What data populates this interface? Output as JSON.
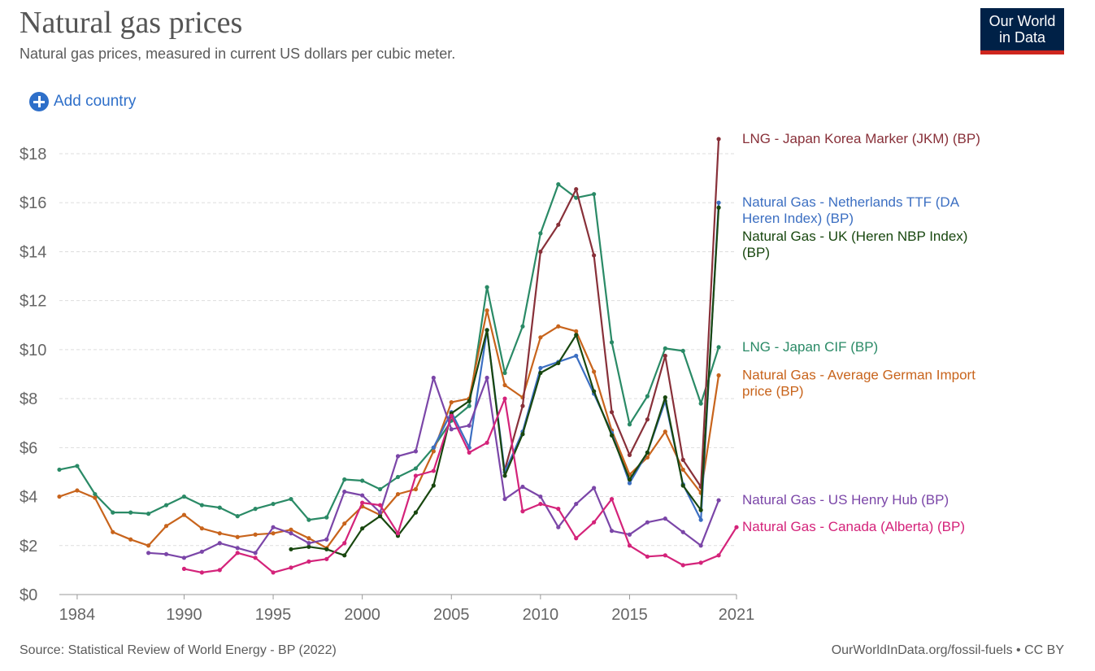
{
  "header": {
    "title": "Natural gas prices",
    "subtitle": "Natural gas prices, measured in current US dollars per cubic meter.",
    "logo_line1": "Our World",
    "logo_line2": "in Data"
  },
  "controls": {
    "add_country_label": "Add country"
  },
  "footer": {
    "source": "Source: Statistical Review of World Energy - BP (2022)",
    "credit": "OurWorldInData.org/fossil-fuels • CC BY"
  },
  "colors": {
    "brand_bg": "#002147",
    "brand_accent": "#ce261e",
    "link": "#2e6fc9"
  },
  "chart_data": {
    "type": "line",
    "title": "Natural gas prices",
    "subtitle": "Natural gas prices, measured in current US dollars per cubic meter.",
    "xlabel": "",
    "ylabel": "",
    "xlim": [
      1983,
      2021
    ],
    "ylim": [
      0,
      18
    ],
    "x_ticks": [
      "1984",
      "1990",
      "1995",
      "2000",
      "2005",
      "2010",
      "2015",
      "2021"
    ],
    "y_ticks": [
      "$0",
      "$2",
      "$4",
      "$6",
      "$8",
      "$10",
      "$12",
      "$14",
      "$16",
      "$18"
    ],
    "grid": true,
    "legend": "line-end labels",
    "series": [
      {
        "name": "LNG - Japan CIF (BP)",
        "color": "#2a8a66",
        "label_lines": [
          "LNG - Japan CIF (BP)"
        ],
        "points": [
          [
            1983,
            5.1
          ],
          [
            1984,
            5.25
          ],
          [
            1985,
            4.1
          ],
          [
            1986,
            3.35
          ],
          [
            1987,
            3.35
          ],
          [
            1988,
            3.3
          ],
          [
            1989,
            3.65
          ],
          [
            1990,
            4.0
          ],
          [
            1991,
            3.65
          ],
          [
            1992,
            3.55
          ],
          [
            1993,
            3.2
          ],
          [
            1994,
            3.5
          ],
          [
            1995,
            3.7
          ],
          [
            1996,
            3.9
          ],
          [
            1997,
            3.05
          ],
          [
            1998,
            3.15
          ],
          [
            1999,
            4.7
          ],
          [
            2000,
            4.65
          ],
          [
            2001,
            4.3
          ],
          [
            2002,
            4.8
          ],
          [
            2003,
            5.15
          ],
          [
            2004,
            6.0
          ],
          [
            2005,
            7.1
          ],
          [
            2006,
            7.7
          ],
          [
            2007,
            12.55
          ],
          [
            2008,
            9.05
          ],
          [
            2009,
            10.95
          ],
          [
            2010,
            14.75
          ],
          [
            2011,
            16.75
          ],
          [
            2012,
            16.2
          ],
          [
            2013,
            16.35
          ],
          [
            2014,
            10.3
          ],
          [
            2015,
            6.95
          ],
          [
            2016,
            8.1
          ],
          [
            2017,
            10.05
          ],
          [
            2018,
            9.95
          ],
          [
            2019,
            7.8
          ],
          [
            2020,
            10.1
          ]
        ]
      },
      {
        "name": "Natural Gas - Average German Import price (BP)",
        "color": "#c8641c",
        "label_lines": [
          "Natural Gas - Average German Import",
          "price (BP)"
        ],
        "points": [
          [
            1983,
            4.0
          ],
          [
            1984,
            4.25
          ],
          [
            1985,
            3.95
          ],
          [
            1986,
            2.55
          ],
          [
            1987,
            2.25
          ],
          [
            1988,
            2.0
          ],
          [
            1989,
            2.8
          ],
          [
            1990,
            3.25
          ],
          [
            1991,
            2.7
          ],
          [
            1992,
            2.5
          ],
          [
            1993,
            2.35
          ],
          [
            1994,
            2.45
          ],
          [
            1995,
            2.5
          ],
          [
            1996,
            2.65
          ],
          [
            1997,
            2.3
          ],
          [
            1998,
            1.9
          ],
          [
            1999,
            2.9
          ],
          [
            2000,
            3.6
          ],
          [
            2001,
            3.25
          ],
          [
            2002,
            4.1
          ],
          [
            2003,
            4.3
          ],
          [
            2004,
            5.85
          ],
          [
            2005,
            7.85
          ],
          [
            2006,
            8.0
          ],
          [
            2007,
            11.6
          ],
          [
            2008,
            8.55
          ],
          [
            2009,
            8.05
          ],
          [
            2010,
            10.5
          ],
          [
            2011,
            10.95
          ],
          [
            2012,
            10.75
          ],
          [
            2013,
            9.1
          ],
          [
            2014,
            6.7
          ],
          [
            2015,
            4.9
          ],
          [
            2016,
            5.6
          ],
          [
            2017,
            6.65
          ],
          [
            2018,
            5.1
          ],
          [
            2019,
            4.15
          ],
          [
            2020,
            8.95
          ]
        ]
      },
      {
        "name": "LNG - Japan Korea Marker (JKM) (BP)",
        "color": "#883039",
        "label_lines": [
          "LNG - Japan Korea Marker (JKM) (BP)"
        ],
        "points": [
          [
            2008,
            5.1
          ],
          [
            2009,
            7.7
          ],
          [
            2010,
            14.0
          ],
          [
            2011,
            15.1
          ],
          [
            2012,
            16.55
          ],
          [
            2013,
            13.85
          ],
          [
            2014,
            7.45
          ],
          [
            2015,
            5.7
          ],
          [
            2016,
            7.15
          ],
          [
            2017,
            9.75
          ],
          [
            2018,
            5.5
          ],
          [
            2019,
            4.4
          ],
          [
            2020,
            18.6
          ]
        ]
      },
      {
        "name": "Natural Gas - Netherlands TTF (DA Heren Index) (BP)",
        "color": "#3c6fc2",
        "label_lines": [
          "Natural Gas - Netherlands TTF (DA",
          "Heren Index) (BP)"
        ],
        "points": [
          [
            2004,
            6.0
          ],
          [
            2005,
            7.45
          ],
          [
            2006,
            6.0
          ],
          [
            2007,
            10.8
          ],
          [
            2008,
            5.0
          ],
          [
            2009,
            6.65
          ],
          [
            2010,
            9.25
          ],
          [
            2011,
            9.5
          ],
          [
            2012,
            9.75
          ],
          [
            2013,
            8.2
          ],
          [
            2014,
            6.6
          ],
          [
            2015,
            4.55
          ],
          [
            2016,
            5.8
          ],
          [
            2017,
            7.9
          ],
          [
            2018,
            4.5
          ],
          [
            2019,
            3.05
          ],
          [
            2020,
            16.0
          ]
        ]
      },
      {
        "name": "Natural Gas - UK (Heren NBP Index) (BP)",
        "color": "#18470f",
        "label_lines": [
          "Natural Gas - UK (Heren NBP Index)",
          "(BP)"
        ],
        "points": [
          [
            1996,
            1.85
          ],
          [
            1997,
            1.95
          ],
          [
            1998,
            1.85
          ],
          [
            1999,
            1.6
          ],
          [
            2000,
            2.7
          ],
          [
            2001,
            3.2
          ],
          [
            2002,
            2.4
          ],
          [
            2003,
            3.35
          ],
          [
            2004,
            4.45
          ],
          [
            2005,
            7.4
          ],
          [
            2006,
            7.9
          ],
          [
            2007,
            10.8
          ],
          [
            2008,
            4.85
          ],
          [
            2009,
            6.55
          ],
          [
            2010,
            9.05
          ],
          [
            2011,
            9.45
          ],
          [
            2012,
            10.6
          ],
          [
            2013,
            8.3
          ],
          [
            2014,
            6.5
          ],
          [
            2015,
            4.7
          ],
          [
            2016,
            5.8
          ],
          [
            2017,
            8.05
          ],
          [
            2018,
            4.45
          ],
          [
            2019,
            3.45
          ],
          [
            2020,
            15.8
          ]
        ]
      },
      {
        "name": "Natural Gas - US Henry Hub (BP)",
        "color": "#7b46a8",
        "label_lines": [
          "Natural Gas - US Henry Hub (BP)"
        ],
        "points": [
          [
            1988,
            1.7
          ],
          [
            1989,
            1.65
          ],
          [
            1990,
            1.5
          ],
          [
            1991,
            1.75
          ],
          [
            1992,
            2.1
          ],
          [
            1993,
            1.9
          ],
          [
            1994,
            1.7
          ],
          [
            1995,
            2.75
          ],
          [
            1996,
            2.5
          ],
          [
            1997,
            2.1
          ],
          [
            1998,
            2.25
          ],
          [
            1999,
            4.2
          ],
          [
            2000,
            4.05
          ],
          [
            2001,
            3.35
          ],
          [
            2002,
            5.65
          ],
          [
            2003,
            5.85
          ],
          [
            2004,
            8.85
          ],
          [
            2005,
            6.75
          ],
          [
            2006,
            6.9
          ],
          [
            2007,
            8.85
          ],
          [
            2008,
            3.9
          ],
          [
            2009,
            4.4
          ],
          [
            2010,
            4.0
          ],
          [
            2011,
            2.75
          ],
          [
            2012,
            3.7
          ],
          [
            2013,
            4.35
          ],
          [
            2014,
            2.6
          ],
          [
            2015,
            2.45
          ],
          [
            2016,
            2.95
          ],
          [
            2017,
            3.1
          ],
          [
            2018,
            2.55
          ],
          [
            2019,
            2.0
          ],
          [
            2020,
            3.85
          ]
        ]
      },
      {
        "name": "Natural Gas - Canada (Alberta) (BP)",
        "color": "#d4237a",
        "label_lines": [
          "Natural Gas - Canada (Alberta) (BP)"
        ],
        "points": [
          [
            1990,
            1.05
          ],
          [
            1991,
            0.9
          ],
          [
            1992,
            1.0
          ],
          [
            1993,
            1.7
          ],
          [
            1994,
            1.5
          ],
          [
            1995,
            0.9
          ],
          [
            1996,
            1.1
          ],
          [
            1997,
            1.35
          ],
          [
            1998,
            1.45
          ],
          [
            1999,
            2.1
          ],
          [
            2000,
            3.75
          ],
          [
            2001,
            3.65
          ],
          [
            2002,
            2.5
          ],
          [
            2003,
            4.85
          ],
          [
            2004,
            5.05
          ],
          [
            2005,
            7.3
          ],
          [
            2006,
            5.8
          ],
          [
            2007,
            6.2
          ],
          [
            2008,
            8.0
          ],
          [
            2009,
            3.4
          ],
          [
            2010,
            3.7
          ],
          [
            2011,
            3.5
          ],
          [
            2012,
            2.3
          ],
          [
            2013,
            2.95
          ],
          [
            2014,
            3.9
          ],
          [
            2015,
            2.0
          ],
          [
            2016,
            1.55
          ],
          [
            2017,
            1.6
          ],
          [
            2018,
            1.2
          ],
          [
            2019,
            1.3
          ],
          [
            2020,
            1.6
          ],
          [
            2021,
            2.75
          ]
        ]
      }
    ]
  }
}
